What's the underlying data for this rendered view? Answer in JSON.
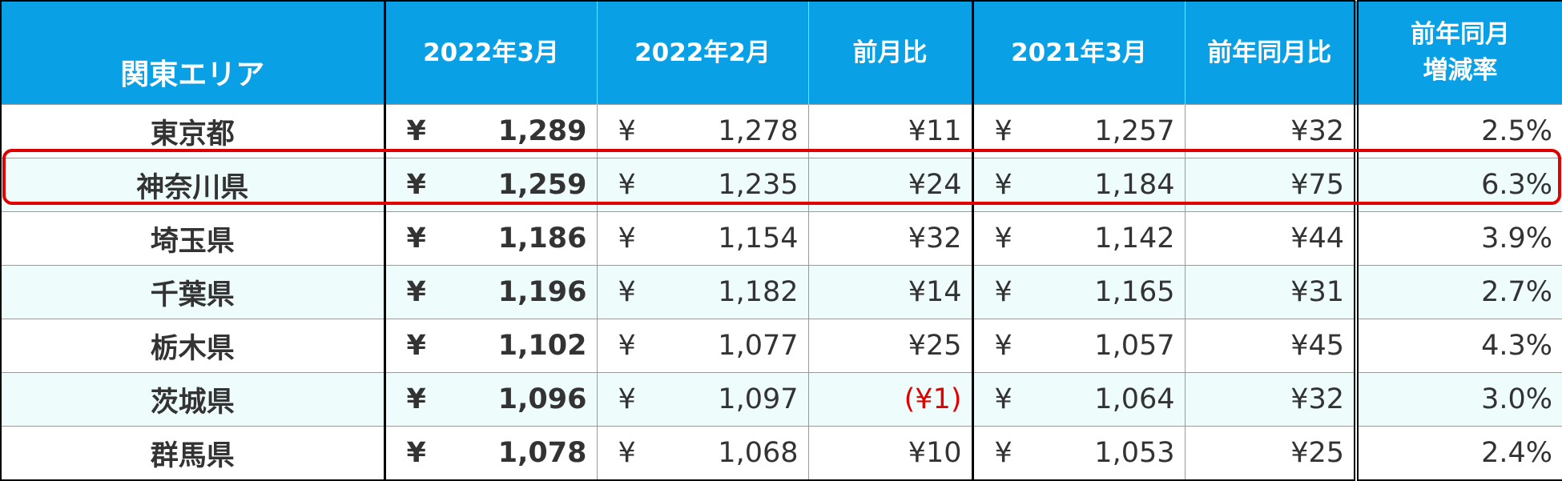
{
  "table": {
    "currency": "¥",
    "header": [
      "関東エリア",
      "2022年3月",
      "2022年2月",
      "前月比",
      "2021年3月",
      "前年同月比",
      [
        "前年同月",
        "増減率"
      ]
    ],
    "rows": [
      [
        "東京都",
        "1,289",
        "1,278",
        "¥11",
        "1,257",
        "¥32",
        "2.5%"
      ],
      [
        "神奈川県",
        "1,259",
        "1,235",
        "¥24",
        "1,184",
        "¥75",
        "6.3%"
      ],
      [
        "埼玉県",
        "1,186",
        "1,154",
        "¥32",
        "1,142",
        "¥44",
        "3.9%"
      ],
      [
        "千葉県",
        "1,196",
        "1,182",
        "¥14",
        "1,165",
        "¥31",
        "2.7%"
      ],
      [
        "栃木県",
        "1,102",
        "1,077",
        "¥25",
        "1,057",
        "¥45",
        "4.3%"
      ],
      [
        "茨城県",
        "1,096",
        "1,097",
        "(¥1)",
        "1,064",
        "¥32",
        "3.0%"
      ],
      [
        "群馬県",
        "1,078",
        "1,068",
        "¥10",
        "1,053",
        "¥25",
        "2.4%"
      ]
    ]
  }
}
